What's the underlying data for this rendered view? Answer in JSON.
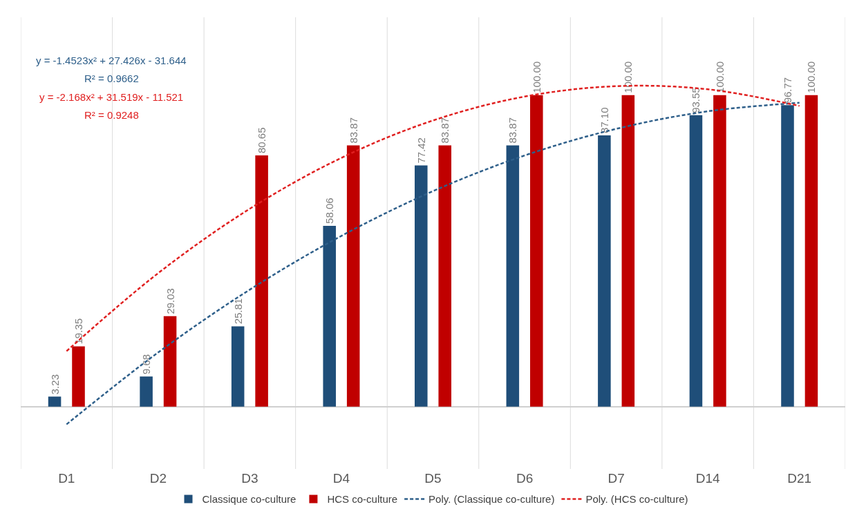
{
  "chart_data": {
    "type": "bar",
    "categories": [
      "D1",
      "D2",
      "D3",
      "D4",
      "D5",
      "D6",
      "D7",
      "D14",
      "D21"
    ],
    "series": [
      {
        "name": "Classique co-culture",
        "color": "#1f4e79",
        "values": [
          3.23,
          9.68,
          25.81,
          58.06,
          77.42,
          83.87,
          87.1,
          93.55,
          96.77
        ],
        "value_labels": [
          "3.23",
          "9.68",
          "25.81",
          "58.06",
          "77.42",
          "83.87",
          "87.10",
          "93.55",
          "96.77"
        ]
      },
      {
        "name": "HCS co-culture",
        "color": "#c00000",
        "values": [
          19.35,
          29.03,
          80.65,
          83.87,
          83.87,
          100,
          100,
          100,
          100
        ],
        "value_labels": [
          "19.35",
          "29.03",
          "80.65",
          "83.87",
          "83.87",
          "100.00",
          "100.00",
          "100.00",
          "100.00"
        ]
      },
      {
        "name": "Poly. (Classique co-culture)",
        "type": "line",
        "color": "#2e5f8a",
        "line_style": "dashed",
        "values": [
          -5.67,
          17.4,
          37.56,
          54.82,
          69.18,
          80.63,
          89.18,
          94.82,
          97.55
        ]
      },
      {
        "name": "Poly. (HCS co-culture)",
        "type": "line",
        "color": "#e02020",
        "line_style": "dashed",
        "values": [
          17.83,
          42.85,
          63.52,
          79.87,
          91.87,
          99.54,
          102.88,
          101.88,
          96.54
        ]
      }
    ],
    "annotations": [
      "y = -1.4523x² + 27.426x - 31.644",
      "R² = 0.9662",
      "y = -2.168x² + 31.519x - 11.521",
      "R² = 0.9248"
    ],
    "grid": "x",
    "legend": "bottom",
    "marker": "none"
  }
}
